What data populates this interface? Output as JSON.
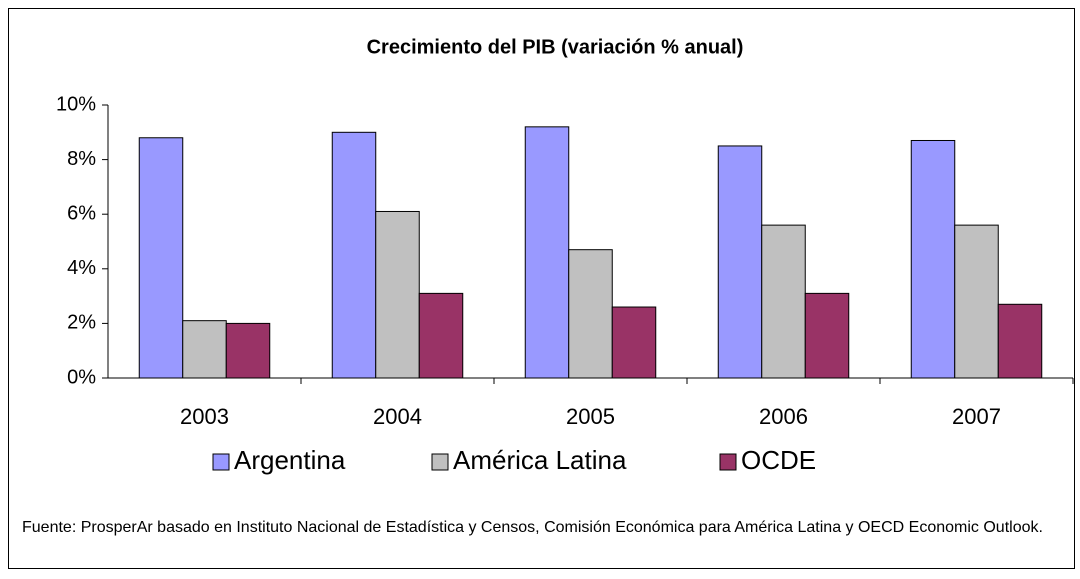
{
  "chart_data": {
    "type": "bar",
    "title": "Crecimiento del PIB (variación % anual)",
    "categories": [
      "2003",
      "2004",
      "2005",
      "2006",
      "2007"
    ],
    "series": [
      {
        "name": "Argentina",
        "color": "#9999ff",
        "values": [
          8.8,
          9.0,
          9.2,
          8.5,
          8.7
        ]
      },
      {
        "name": "América Latina",
        "color": "#c0c0c0",
        "values": [
          2.1,
          6.1,
          4.7,
          5.6,
          5.6
        ]
      },
      {
        "name": "OCDE",
        "color": "#993366",
        "values": [
          2.0,
          3.1,
          2.6,
          3.1,
          2.7
        ]
      }
    ],
    "ylim": [
      0,
      10
    ],
    "yticks": [
      {
        "value": 0,
        "label": "0%"
      },
      {
        "value": 2,
        "label": "2%"
      },
      {
        "value": 4,
        "label": "4%"
      },
      {
        "value": 6,
        "label": "6%"
      },
      {
        "value": 8,
        "label": "8%"
      },
      {
        "value": 10,
        "label": "10%"
      }
    ],
    "legend": "bottom",
    "source": "Fuente: ProsperAr basado en Instituto Nacional de Estadística y Censos, Comisión Económica para América Latina y OECD Economic Outlook."
  }
}
